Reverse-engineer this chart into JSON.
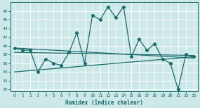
{
  "title": "",
  "xlabel": "Humidex (Indice chaleur)",
  "background_color": "#cde8e8",
  "line_color": "#1a6b6b",
  "xlim": [
    -0.5,
    23.5
  ],
  "ylim": [
    29.5,
    50
  ],
  "yticks": [
    30,
    32,
    34,
    36,
    38,
    40,
    42,
    44,
    46,
    48
  ],
  "xticks": [
    0,
    1,
    2,
    3,
    4,
    5,
    6,
    7,
    8,
    9,
    10,
    11,
    12,
    13,
    14,
    15,
    16,
    17,
    18,
    19,
    20,
    21,
    22,
    23
  ],
  "series1": [
    39.5,
    39,
    39,
    34,
    37,
    36,
    35.5,
    38.5,
    43,
    36,
    47,
    46,
    49,
    46.5,
    49,
    37.5,
    41.5,
    39,
    40.5,
    37,
    36,
    30,
    38,
    37.5
  ],
  "line2_x": [
    0,
    23
  ],
  "line2_y": [
    39.5,
    37.2
  ],
  "line3_x": [
    0,
    23
  ],
  "line3_y": [
    38.5,
    37.8
  ],
  "line4_x": [
    0,
    23
  ],
  "line4_y": [
    34.0,
    37.5
  ]
}
